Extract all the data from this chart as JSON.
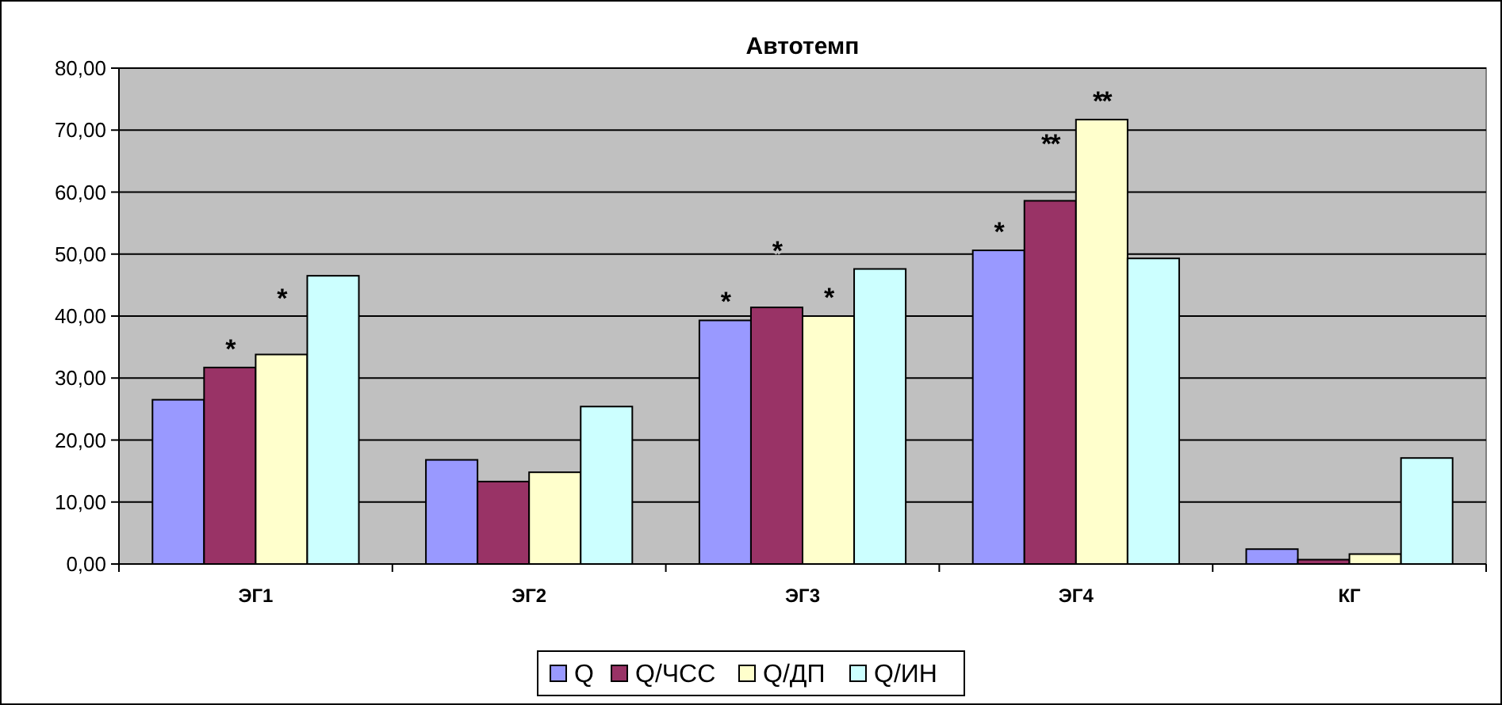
{
  "chart_data": {
    "type": "bar",
    "title": "Автотемп",
    "categories": [
      "ЭГ1",
      "ЭГ2",
      "ЭГ3",
      "ЭГ4",
      "КГ"
    ],
    "series": [
      {
        "name": "Q",
        "color": "#9999ff",
        "values": [
          26.5,
          16.8,
          39.3,
          50.6,
          2.4
        ]
      },
      {
        "name": "Q/ЧСС",
        "color": "#993366",
        "values": [
          31.7,
          13.3,
          41.4,
          58.6,
          0.7
        ]
      },
      {
        "name": "Q/ДП",
        "color": "#ffffcc",
        "values": [
          33.8,
          14.8,
          40.0,
          71.7,
          1.6
        ]
      },
      {
        "name": "Q/ИН",
        "color": "#ccffff",
        "values": [
          46.5,
          25.4,
          47.6,
          49.3,
          17.1
        ]
      }
    ],
    "ylim": [
      0,
      80
    ],
    "yticks": [
      {
        "value": 0,
        "label": "0,00"
      },
      {
        "value": 10,
        "label": "10,00"
      },
      {
        "value": 20,
        "label": "20,00"
      },
      {
        "value": 30,
        "label": "30,00"
      },
      {
        "value": 40,
        "label": "40,00"
      },
      {
        "value": 50,
        "label": "50,00"
      },
      {
        "value": 60,
        "label": "60,00"
      },
      {
        "value": 70,
        "label": "70,00"
      },
      {
        "value": 80,
        "label": "80,00"
      }
    ],
    "grid": "y",
    "legend": "bottom",
    "annotations": [
      {
        "text": "*",
        "x": "ЭГ1",
        "y": 31.7
      },
      {
        "text": "*",
        "x": "ЭГ1",
        "y": 33.8
      },
      {
        "text": "*",
        "x": "ЭГ3",
        "y": 39.3
      },
      {
        "text": "*",
        "x": "ЭГ3",
        "y": 41.4
      },
      {
        "text": "*",
        "x": "ЭГ3",
        "y": 40.0
      },
      {
        "text": "*",
        "x": "ЭГ4",
        "y": 50.6
      },
      {
        "text": "**",
        "x": "ЭГ4",
        "y": 58.6
      },
      {
        "text": "**",
        "x": "ЭГ4",
        "y": 71.7
      }
    ]
  }
}
